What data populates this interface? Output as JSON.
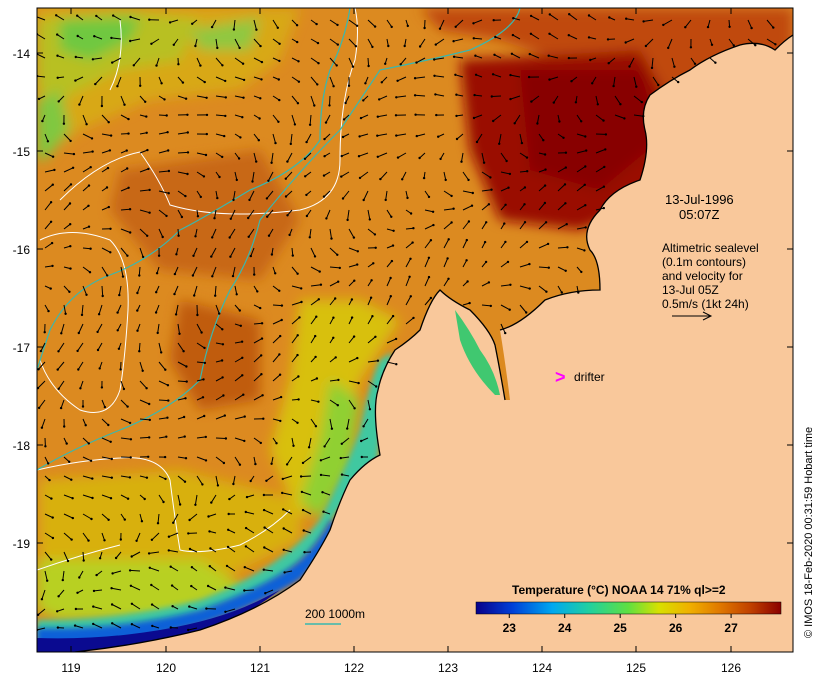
{
  "map": {
    "x_axis": {
      "range": [
        118.6,
        126.7
      ],
      "ticks": [
        "119",
        "120",
        "121",
        "122",
        "123",
        "124",
        "125",
        "126"
      ]
    },
    "y_axis": {
      "range": [
        -20.1,
        -13.55
      ],
      "ticks": [
        "-14",
        "-15",
        "-16",
        "-17",
        "-18",
        "-19"
      ]
    },
    "land_color": "#f9c89b",
    "ocean_palette": [
      "#07008a",
      "#0050e0",
      "#00b0f0",
      "#20d0a0",
      "#60e040",
      "#d8e000",
      "#f0b000",
      "#e07800",
      "#c04000",
      "#8a0000"
    ]
  },
  "annotations": {
    "date": "13-Jul-1996",
    "time": "05:07Z",
    "legend_lines": [
      "Altimetric sealevel",
      "(0.1m contours)",
      "and velocity for",
      "13-Jul 05Z",
      "0.5m/s (1kt 24h)"
    ],
    "drifter_symbol": ">",
    "drifter_label": "drifter",
    "drifter_color": "#ff00ff",
    "bathymetry_label": "200  1000m"
  },
  "colorbar": {
    "title": "Temperature (°C) NOAA 14 71% ql>=2",
    "ticks": [
      "23",
      "24",
      "25",
      "26",
      "27"
    ],
    "range": [
      22.4,
      27.9
    ]
  },
  "credit": "© IMOS 18-Feb-2020 00:31:59 Hobart time"
}
